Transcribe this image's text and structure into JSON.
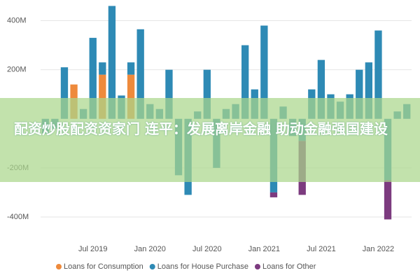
{
  "chart_data": {
    "type": "stacked-bar",
    "annotation": "配资炒股配资资家门 连平：发展离岸金融 助动金融强国建设",
    "categories": [
      null,
      null,
      null,
      null,
      null,
      "Jul 2019",
      null,
      null,
      null,
      null,
      null,
      "Jan 2020",
      null,
      null,
      null,
      null,
      null,
      "Jul 2020",
      null,
      null,
      null,
      null,
      null,
      "Jan 2021",
      null,
      null,
      null,
      null,
      null,
      "Jul 2021",
      null,
      null,
      null,
      null,
      null,
      "Jan 2022",
      null,
      null,
      null
    ],
    "series": [
      {
        "name": "Loans for Consumption",
        "color": "#ee8a3c",
        "values": [
          0,
          0,
          0,
          140,
          0,
          0,
          180,
          0,
          0,
          180,
          0,
          0,
          0,
          0,
          0,
          0,
          0,
          0,
          0,
          0,
          0,
          0,
          0,
          0,
          0,
          0,
          0,
          0,
          0,
          0,
          0,
          0,
          0,
          0,
          0,
          0,
          0,
          0,
          0
        ]
      },
      {
        "name": "Loans for House Purchase",
        "color": "#2e8ab5",
        "values": [
          -60,
          -40,
          210,
          0,
          40,
          330,
          50,
          460,
          95,
          50,
          365,
          60,
          40,
          200,
          -230,
          -310,
          30,
          200,
          -200,
          40,
          60,
          300,
          120,
          380,
          -300,
          50,
          -70,
          -90,
          120,
          240,
          100,
          70,
          100,
          200,
          230,
          360,
          -250,
          30,
          60
        ]
      },
      {
        "name": "Loans for Other",
        "color": "#7c3b7f",
        "values": [
          0,
          0,
          0,
          0,
          0,
          0,
          0,
          0,
          0,
          0,
          0,
          0,
          0,
          0,
          0,
          0,
          0,
          0,
          0,
          0,
          0,
          0,
          0,
          0,
          -20,
          0,
          0,
          -220,
          0,
          0,
          0,
          0,
          0,
          0,
          0,
          0,
          -160,
          0,
          0
        ]
      }
    ],
    "ylim": [
      -500,
      470
    ],
    "yticks": [
      {
        "value": 400,
        "label": "400M"
      },
      {
        "value": 200,
        "label": "200M"
      },
      {
        "value": -200,
        "label": "-200M"
      },
      {
        "value": -400,
        "label": "-400M"
      }
    ],
    "grid": true
  }
}
